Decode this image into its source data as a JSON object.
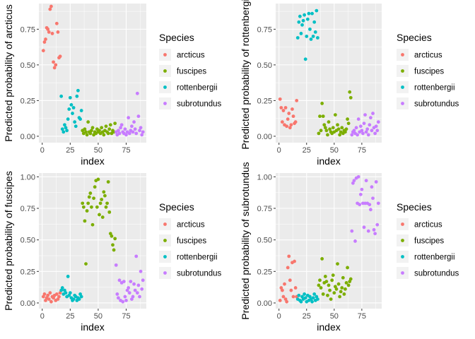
{
  "colors": {
    "arcticus": "#F8766D",
    "fuscipes": "#7CAE00",
    "rottenbergii": "#00BFC4",
    "subrotundus": "#C77CFF",
    "panel_bg": "#EBEBEB",
    "grid": "#FFFFFF"
  },
  "chart_data": [
    {
      "type": "scatter",
      "ylabel": "Predicted probability of arcticus",
      "xlabel": "index",
      "xlim": [
        -3,
        93
      ],
      "ylim": [
        -0.045,
        0.93
      ],
      "xticks": [
        0,
        25,
        50,
        75
      ],
      "yticks": [
        0.0,
        0.25,
        0.5,
        0.75
      ],
      "ytick_labels": [
        "0.00",
        "0.25",
        "0.50",
        "0.75"
      ],
      "legend": {
        "title": "Species",
        "position": "right",
        "entries": [
          "arcticus",
          "fuscipes",
          "rottenbergii",
          "subrotundus"
        ]
      },
      "series": [
        {
          "name": "arcticus",
          "x": [
            1,
            2,
            3,
            4,
            5,
            6,
            7,
            8,
            9,
            10,
            11,
            12,
            13,
            14,
            15,
            16
          ],
          "y": [
            0.6,
            0.66,
            0.68,
            0.76,
            0.75,
            0.73,
            0.89,
            0.91,
            0.72,
            0.52,
            0.48,
            0.5,
            0.79,
            0.73,
            0.55,
            0.56
          ]
        },
        {
          "name": "fuscipes",
          "x": [
            36,
            37,
            38,
            39,
            40,
            41,
            42,
            43,
            44,
            45,
            46,
            47,
            48,
            49,
            50,
            51,
            52,
            53,
            54,
            55,
            56,
            57,
            58,
            59,
            60,
            61,
            62,
            63,
            64,
            65
          ],
          "y": [
            0.04,
            0.02,
            0.05,
            0.03,
            0.01,
            0.1,
            0.03,
            0.02,
            0.04,
            0.06,
            0.01,
            0.03,
            0.02,
            0.05,
            0.03,
            0.04,
            0.02,
            0.06,
            0.03,
            0.01,
            0.04,
            0.07,
            0.03,
            0.02,
            0.05,
            0.08,
            0.02,
            0.04,
            0.03,
            0.09
          ]
        },
        {
          "name": "rottenbergii",
          "x": [
            17,
            18,
            19,
            20,
            21,
            22,
            23,
            24,
            25,
            26,
            27,
            28,
            29,
            30,
            31,
            32,
            33,
            34,
            35
          ],
          "y": [
            0.28,
            0.05,
            0.03,
            0.08,
            0.06,
            0.04,
            0.12,
            0.19,
            0.27,
            0.22,
            0.16,
            0.2,
            0.1,
            0.07,
            0.28,
            0.32,
            0.13,
            0.12,
            0.18
          ]
        },
        {
          "name": "subrotundus",
          "x": [
            66,
            67,
            68,
            69,
            70,
            71,
            72,
            73,
            74,
            75,
            76,
            77,
            78,
            79,
            80,
            81,
            82,
            83,
            84,
            85,
            86,
            87,
            88,
            89,
            90
          ],
          "y": [
            0.03,
            0.01,
            0.04,
            0.02,
            0.06,
            0.08,
            0.03,
            0.02,
            0.05,
            0.01,
            0.03,
            0.13,
            0.02,
            0.04,
            0.07,
            0.03,
            0.1,
            0.05,
            0.02,
            0.3,
            0.14,
            0.04,
            0.06,
            0.01,
            0.03
          ]
        }
      ]
    },
    {
      "type": "scatter",
      "ylabel": "Predicted probability of rottenbergii",
      "xlabel": "index",
      "xlim": [
        -3,
        93
      ],
      "ylim": [
        -0.045,
        0.93
      ],
      "xticks": [
        0,
        25,
        50,
        75
      ],
      "yticks": [
        0.0,
        0.25,
        0.5,
        0.75
      ],
      "ytick_labels": [
        "0.00",
        "0.25",
        "0.50",
        "0.75"
      ],
      "legend": {
        "title": "Species",
        "position": "right",
        "entries": [
          "arcticus",
          "fuscipes",
          "rottenbergii",
          "subrotundus"
        ]
      },
      "series": [
        {
          "name": "arcticus",
          "x": [
            1,
            2,
            3,
            4,
            5,
            6,
            7,
            8,
            9,
            10,
            11,
            12,
            13,
            14,
            15,
            16
          ],
          "y": [
            0.26,
            0.2,
            0.1,
            0.18,
            0.08,
            0.2,
            0.07,
            0.12,
            0.16,
            0.06,
            0.08,
            0.19,
            0.14,
            0.09,
            0.1,
            0.25
          ]
        },
        {
          "name": "fuscipes",
          "x": [
            36,
            37,
            38,
            39,
            40,
            41,
            42,
            43,
            44,
            45,
            46,
            47,
            48,
            49,
            50,
            51,
            52,
            53,
            54,
            55,
            56,
            57,
            58,
            59,
            60,
            61,
            62,
            63,
            64,
            65
          ],
          "y": [
            0.02,
            0.14,
            0.04,
            0.23,
            0.14,
            0.08,
            0.06,
            0.04,
            0.01,
            0.1,
            0.05,
            0.03,
            0.02,
            0.06,
            0.03,
            0.15,
            0.04,
            0.08,
            0.05,
            0.01,
            0.03,
            0.06,
            0.02,
            0.04,
            0.03,
            0.05,
            0.12,
            0.09,
            0.31,
            0.27
          ]
        },
        {
          "name": "rottenbergii",
          "x": [
            17,
            18,
            19,
            20,
            21,
            22,
            23,
            24,
            25,
            26,
            27,
            28,
            29,
            30,
            31,
            32,
            33,
            34,
            35
          ],
          "y": [
            0.69,
            0.8,
            0.84,
            0.72,
            0.78,
            0.81,
            0.85,
            0.54,
            0.7,
            0.82,
            0.86,
            0.75,
            0.68,
            0.86,
            0.7,
            0.8,
            0.73,
            0.88,
            0.69
          ]
        },
        {
          "name": "subrotundus",
          "x": [
            66,
            67,
            68,
            69,
            70,
            71,
            72,
            73,
            74,
            75,
            76,
            77,
            78,
            79,
            80,
            81,
            82,
            83,
            84,
            85,
            86,
            87,
            88,
            89,
            90
          ],
          "y": [
            0.01,
            0.03,
            0.04,
            0.02,
            0.06,
            0.01,
            0.12,
            0.03,
            0.07,
            0.04,
            0.02,
            0.09,
            0.15,
            0.03,
            0.05,
            0.01,
            0.08,
            0.13,
            0.04,
            0.16,
            0.06,
            0.02,
            0.07,
            0.04,
            0.1
          ]
        }
      ]
    },
    {
      "type": "scatter",
      "ylabel": "Predicted probability of fuscipes",
      "xlabel": "index",
      "xlim": [
        -3,
        93
      ],
      "ylim": [
        -0.045,
        1.03
      ],
      "xticks": [
        0,
        25,
        50,
        75
      ],
      "yticks": [
        0.0,
        0.25,
        0.5,
        0.75,
        1.0
      ],
      "ytick_labels": [
        "0.00",
        "0.25",
        "0.50",
        "0.75",
        "1.00"
      ],
      "legend": {
        "title": "Species",
        "position": "right",
        "entries": [
          "arcticus",
          "fuscipes",
          "rottenbergii",
          "subrotundus"
        ]
      },
      "series": [
        {
          "name": "arcticus",
          "x": [
            1,
            2,
            3,
            4,
            5,
            6,
            7,
            8,
            9,
            10,
            11,
            12,
            13,
            14,
            15,
            16
          ],
          "y": [
            0.05,
            0.07,
            0.02,
            0.04,
            0.06,
            0.03,
            0.08,
            0.01,
            0.05,
            0.04,
            0.06,
            0.02,
            0.07,
            0.03,
            0.05,
            0.08
          ]
        },
        {
          "name": "fuscipes",
          "x": [
            36,
            37,
            38,
            39,
            40,
            41,
            42,
            43,
            44,
            45,
            46,
            47,
            48,
            49,
            50,
            51,
            52,
            53,
            54,
            55,
            56,
            57,
            58,
            59,
            60,
            61,
            62,
            63,
            64,
            65
          ],
          "y": [
            0.79,
            0.76,
            0.65,
            0.31,
            0.73,
            0.79,
            0.84,
            0.87,
            0.76,
            0.62,
            0.83,
            0.92,
            0.97,
            0.76,
            0.98,
            0.7,
            0.79,
            0.82,
            0.68,
            0.88,
            0.85,
            0.76,
            0.79,
            0.96,
            0.72,
            0.55,
            0.53,
            0.46,
            0.42,
            0.51
          ]
        },
        {
          "name": "rottenbergii",
          "x": [
            17,
            18,
            19,
            20,
            21,
            22,
            23,
            24,
            25,
            26,
            27,
            28,
            29,
            30,
            31,
            32,
            33,
            34,
            35
          ],
          "y": [
            0.1,
            0.12,
            0.07,
            0.1,
            0.08,
            0.05,
            0.21,
            0.06,
            0.08,
            0.04,
            0.02,
            0.03,
            0.06,
            0.05,
            0.02,
            0.04,
            0.03,
            0.07,
            0.05
          ]
        },
        {
          "name": "subrotundus",
          "x": [
            66,
            67,
            68,
            69,
            70,
            71,
            72,
            73,
            74,
            75,
            76,
            77,
            78,
            79,
            80,
            81,
            82,
            83,
            84,
            85,
            86,
            87,
            88,
            89,
            90
          ],
          "y": [
            0.3,
            0.07,
            0.04,
            0.18,
            0.02,
            0.16,
            0.01,
            0.17,
            0.05,
            0.02,
            0.1,
            0.12,
            0.08,
            0.17,
            0.03,
            0.05,
            0.15,
            0.1,
            0.37,
            0.08,
            0.14,
            0.05,
            0.25,
            0.11,
            0.18
          ]
        }
      ]
    },
    {
      "type": "scatter",
      "ylabel": "Predicted probability of subrotundus",
      "xlabel": "index",
      "xlim": [
        -3,
        93
      ],
      "ylim": [
        -0.045,
        1.03
      ],
      "xticks": [
        0,
        25,
        50,
        75
      ],
      "yticks": [
        0.0,
        0.25,
        0.5,
        0.75,
        1.0
      ],
      "ytick_labels": [
        "0.00",
        "0.25",
        "0.50",
        "0.75",
        "1.00"
      ],
      "legend": {
        "title": "Species",
        "position": "right",
        "entries": [
          "arcticus",
          "fuscipes",
          "rottenbergii",
          "subrotundus"
        ]
      },
      "series": [
        {
          "name": "arcticus",
          "x": [
            1,
            2,
            3,
            4,
            5,
            6,
            7,
            8,
            9,
            10,
            11,
            12,
            13,
            14,
            15,
            16
          ],
          "y": [
            0.02,
            0.12,
            0.1,
            0.05,
            0.15,
            0.03,
            0.01,
            0.28,
            0.37,
            0.18,
            0.1,
            0.32,
            0.05,
            0.33,
            0.12,
            0.05
          ]
        },
        {
          "name": "fuscipes",
          "x": [
            36,
            37,
            38,
            39,
            40,
            41,
            42,
            43,
            44,
            45,
            46,
            47,
            48,
            49,
            50,
            51,
            52,
            53,
            54,
            55,
            56,
            57,
            58,
            59,
            60,
            61,
            62,
            63,
            64,
            65
          ],
          "y": [
            0.14,
            0.18,
            0.12,
            0.35,
            0.07,
            0.16,
            0.21,
            0.17,
            0.06,
            0.14,
            0.1,
            0.03,
            0.18,
            0.22,
            0.08,
            0.13,
            0.11,
            0.31,
            0.15,
            0.05,
            0.09,
            0.12,
            0.2,
            0.07,
            0.11,
            0.16,
            0.28,
            0.14,
            0.17,
            0.19
          ]
        },
        {
          "name": "rottenbergii",
          "x": [
            17,
            18,
            19,
            20,
            21,
            22,
            23,
            24,
            25,
            26,
            27,
            28,
            29,
            30,
            31,
            32,
            33,
            34,
            35
          ],
          "y": [
            0.03,
            0.06,
            0.02,
            0.01,
            0.05,
            0.03,
            0.07,
            0.04,
            0.01,
            0.06,
            0.02,
            0.05,
            0.03,
            0.01,
            0.04,
            0.07,
            0.02,
            0.05,
            0.03
          ]
        },
        {
          "name": "subrotundus",
          "x": [
            66,
            67,
            68,
            69,
            70,
            71,
            72,
            73,
            74,
            75,
            76,
            77,
            78,
            79,
            80,
            81,
            82,
            83,
            84,
            85,
            86,
            87,
            88,
            89,
            90
          ],
          "y": [
            0.57,
            0.95,
            0.97,
            0.49,
            0.99,
            0.79,
            1.0,
            0.78,
            0.86,
            0.9,
            0.79,
            0.6,
            0.79,
            0.97,
            0.79,
            0.57,
            0.78,
            0.74,
            0.92,
            0.83,
            0.58,
            0.55,
            0.96,
            0.62,
            0.79
          ]
        }
      ]
    }
  ]
}
